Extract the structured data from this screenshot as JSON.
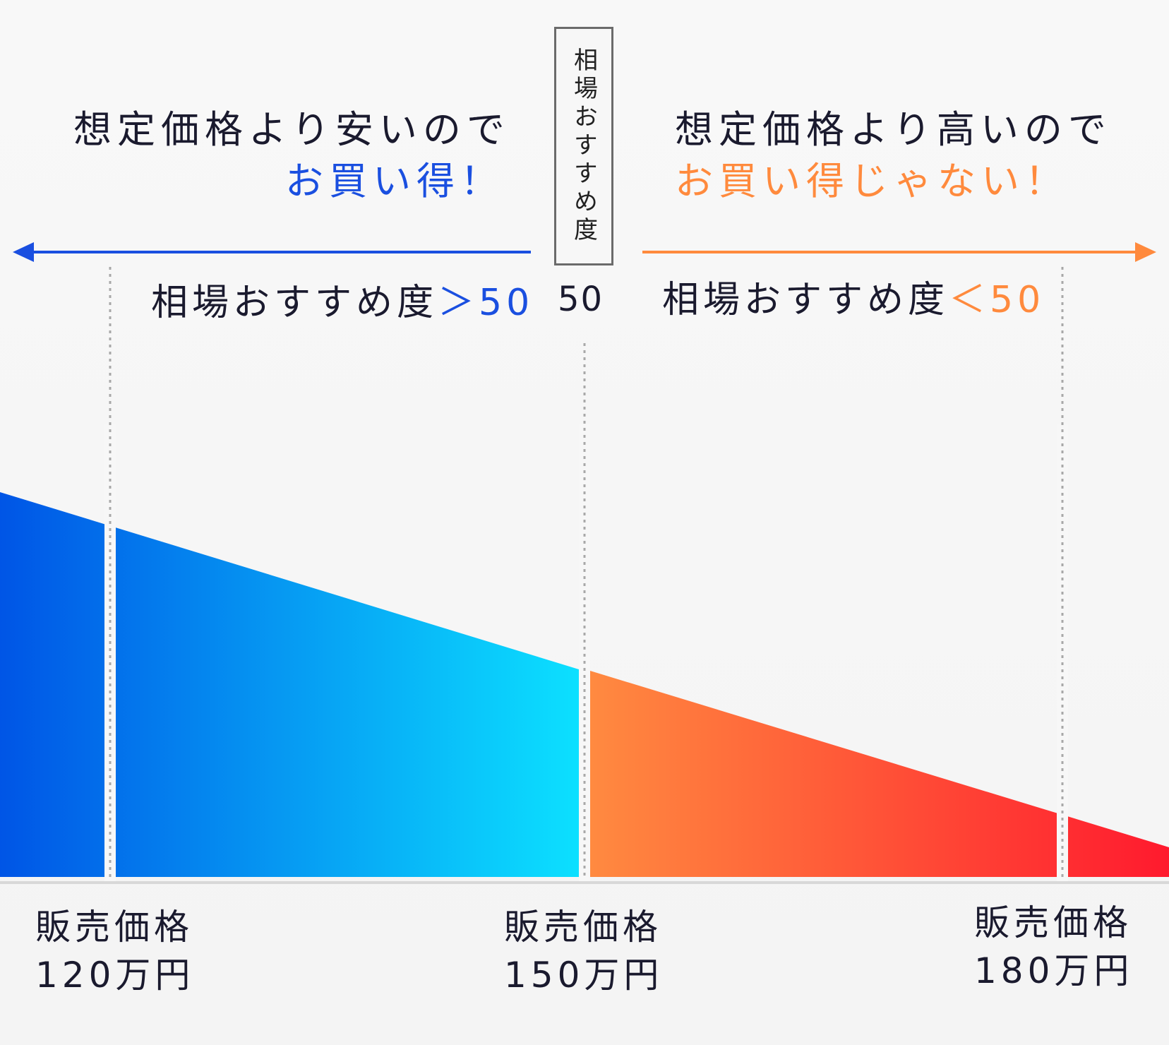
{
  "left_panel": {
    "heading_line1": "想定価格より安いので",
    "heading_line2": "お買い得！",
    "condition_prefix": "相場おすすめ度",
    "condition_suffix": "＞50"
  },
  "right_panel": {
    "heading_line1": "想定価格より高いので",
    "heading_line2": "お買い得じゃない！",
    "condition_prefix": "相場おすすめ度",
    "condition_suffix": "＜50"
  },
  "center": {
    "box_label": "相場おすすめ度",
    "value": "50"
  },
  "price_markers": [
    {
      "label": "販売価格",
      "price": "120万円"
    },
    {
      "label": "販売価格",
      "price": "150万円"
    },
    {
      "label": "販売価格",
      "price": "180万円"
    }
  ],
  "colors": {
    "blue_dark": "#0055e6",
    "blue_light": "#0ce0ff",
    "orange": "#ff8a40",
    "red": "#ff1a2e",
    "accent_blue": "#1a4fe0",
    "accent_orange": "#ff8a3d"
  }
}
